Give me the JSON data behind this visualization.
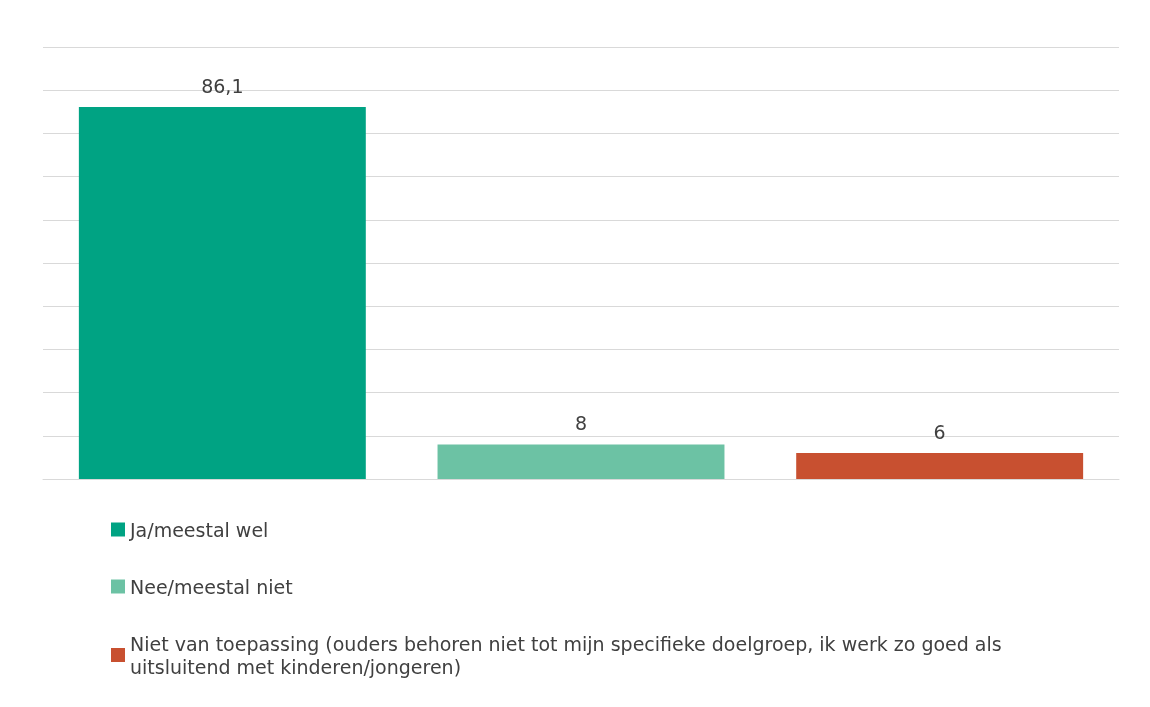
{
  "chart_data": {
    "type": "bar",
    "categories": [
      null,
      null,
      null
    ],
    "stacked": true,
    "series": [
      {
        "name": "Ja/meestal wel",
        "color": "#00a383",
        "values": [
          86.1,
          null,
          null
        ],
        "value_labels": [
          "86,1",
          null,
          null
        ]
      },
      {
        "name": "Nee/meestal niet",
        "color": "#6cc2a4",
        "values": [
          null,
          8,
          null
        ],
        "value_labels": [
          null,
          "8",
          null
        ]
      },
      {
        "name": "Niet van toepassing (ouders behoren niet tot mijn specifieke doelgroep, ik werk zo goed als uitsluitend met kinderen/jongeren)",
        "color": "#c85030",
        "values": [
          null,
          null,
          6
        ],
        "value_labels": [
          null,
          null,
          "6"
        ]
      }
    ],
    "ylim": [
      0,
      100
    ],
    "yticks": [
      {
        "value": 0,
        "label": null
      },
      {
        "value": 10,
        "label": null
      },
      {
        "value": 20,
        "label": null
      },
      {
        "value": 30,
        "label": null
      },
      {
        "value": 40,
        "label": null
      },
      {
        "value": 50,
        "label": null
      },
      {
        "value": 60,
        "label": null
      },
      {
        "value": 70,
        "label": null
      },
      {
        "value": 80,
        "label": null
      },
      {
        "value": 90,
        "label": null
      },
      {
        "value": 100,
        "label": null
      }
    ],
    "grid": true,
    "legend": "bottom left"
  }
}
